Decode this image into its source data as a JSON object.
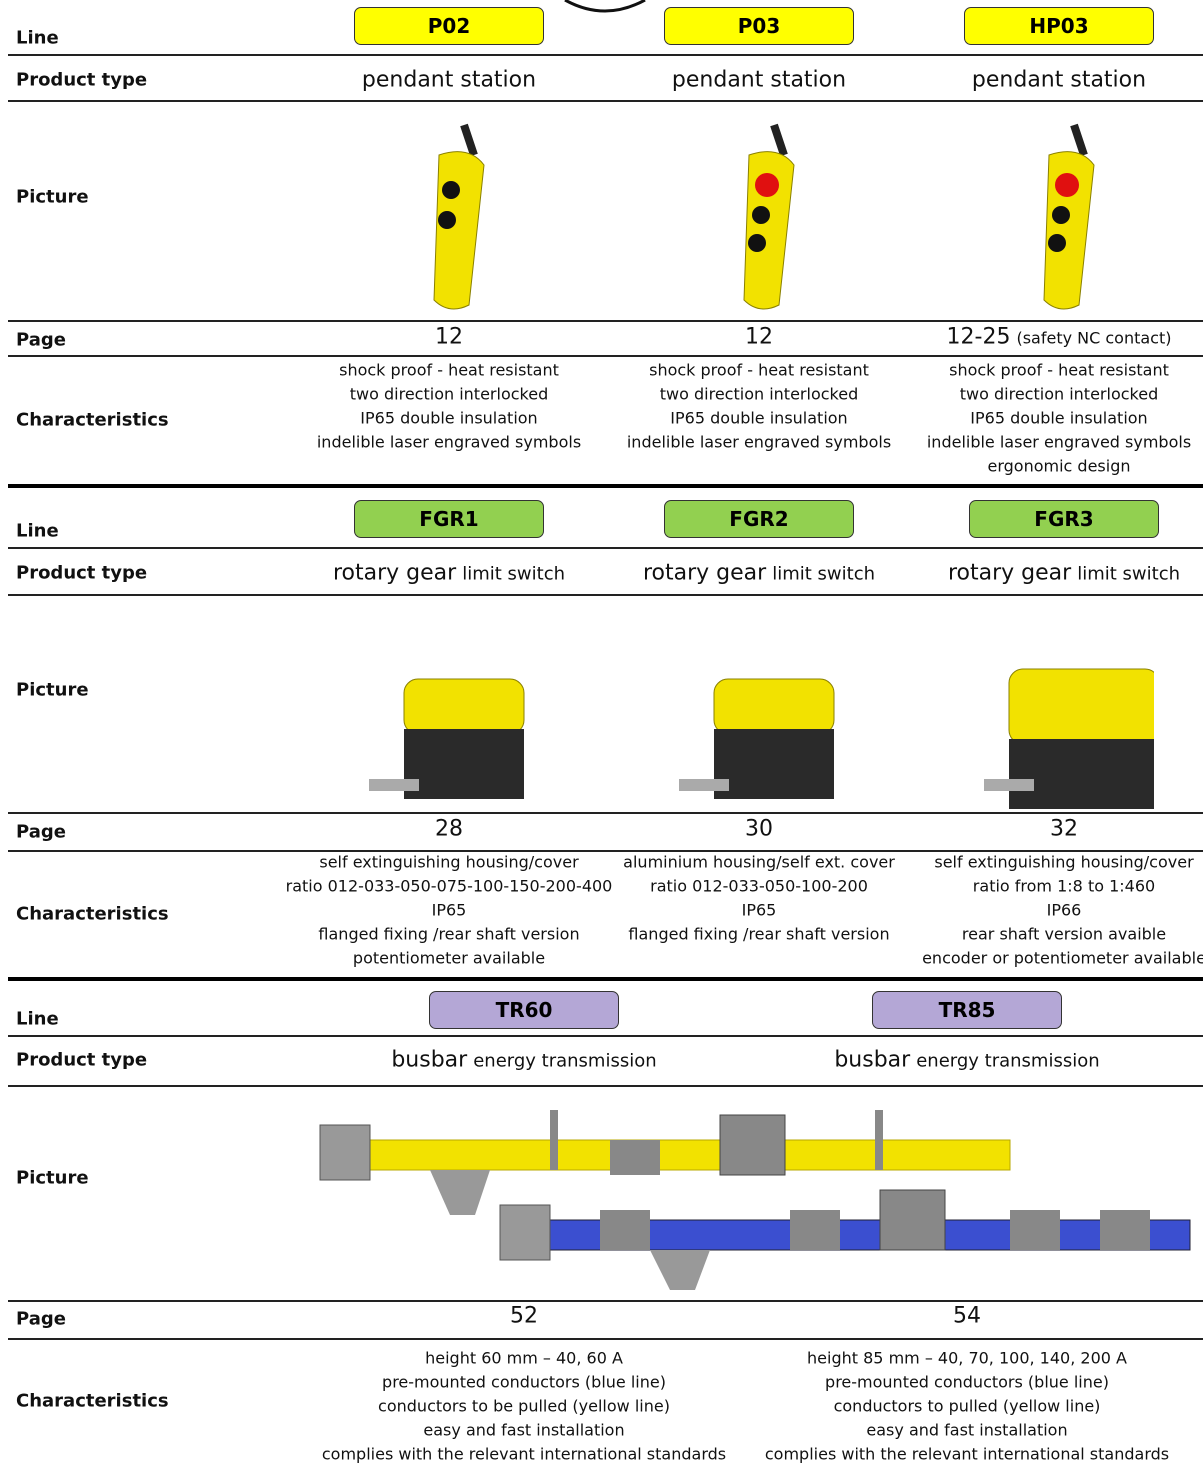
{
  "sections": [
    {
      "labels": {
        "line": "Line",
        "product_type": "Product type",
        "picture": "Picture",
        "page": "Page",
        "characteristics": "Characteristics"
      },
      "products": [
        {
          "line": "P02",
          "product_type": [
            "pendant station"
          ],
          "page": [
            "12"
          ],
          "characteristics": [
            "shock proof - heat resistant",
            "two direction interlocked",
            "IP65 double insulation",
            "indelible laser engraved symbols"
          ]
        },
        {
          "line": "P03",
          "product_type": [
            "pendant station"
          ],
          "page": [
            "12"
          ],
          "characteristics": [
            "shock proof - heat resistant",
            "two direction interlocked",
            "IP65 double insulation",
            "indelible laser engraved symbols"
          ]
        },
        {
          "line": "HP03",
          "product_type": [
            "pendant station"
          ],
          "page": [
            "12-25",
            "(safety NC contact)"
          ],
          "characteristics": [
            "shock proof - heat resistant",
            "two direction interlocked",
            "IP65 double insulation",
            "indelible laser engraved symbols",
            "ergonomic  design"
          ]
        }
      ]
    },
    {
      "labels": {
        "line": "Line",
        "product_type": "Product type",
        "picture": "Picture",
        "page": "Page",
        "characteristics": "Characteristics"
      },
      "products": [
        {
          "line": "FGR1",
          "product_type": [
            "rotary gear",
            "limit switch"
          ],
          "page": [
            "28"
          ],
          "characteristics": [
            "self extinguishing housing/cover",
            "ratio  012-033-050-075-100-150-200-400",
            "IP65",
            "flanged  fixing /rear shaft version",
            "potentiometer available"
          ]
        },
        {
          "line": "FGR2",
          "product_type": [
            "rotary gear",
            "limit switch"
          ],
          "page": [
            "30"
          ],
          "characteristics": [
            "aluminium housing/self ext. cover",
            "ratio 012-033-050-100-200",
            "IP65",
            "flanged  fixing /rear shaft version"
          ]
        },
        {
          "line": "FGR3",
          "product_type": [
            "rotary gear",
            "limit switch"
          ],
          "page": [
            "32"
          ],
          "characteristics": [
            "self extinguishing housing/cover",
            "ratio from 1:8 to 1:460",
            "IP66",
            "rear shaft version avaible",
            "encoder or potentiometer available"
          ]
        }
      ]
    },
    {
      "labels": {
        "line": "Line",
        "product_type": "Product type",
        "picture": "Picture",
        "page": "Page",
        "characteristics": "Characteristics"
      },
      "products": [
        {
          "line": "TR60",
          "product_type": [
            "busbar",
            "energy transmission"
          ],
          "page": [
            "52"
          ],
          "characteristics": [
            "height 60 mm – 40, 60 A",
            "pre-mounted conductors (blue line)",
            "conductors to be pulled (yellow line)",
            "easy and fast installation",
            "complies with the relevant international standards"
          ]
        },
        {
          "line": "TR85",
          "product_type": [
            "busbar",
            "energy transmission"
          ],
          "page": [
            "54"
          ],
          "characteristics": [
            "height 85 mm – 40, 70, 100, 140, 200 A",
            "pre-mounted conductors (blue line)",
            "conductors to pulled (yellow line)",
            "easy and fast installation",
            "complies with the relevant international standards"
          ]
        }
      ]
    }
  ]
}
